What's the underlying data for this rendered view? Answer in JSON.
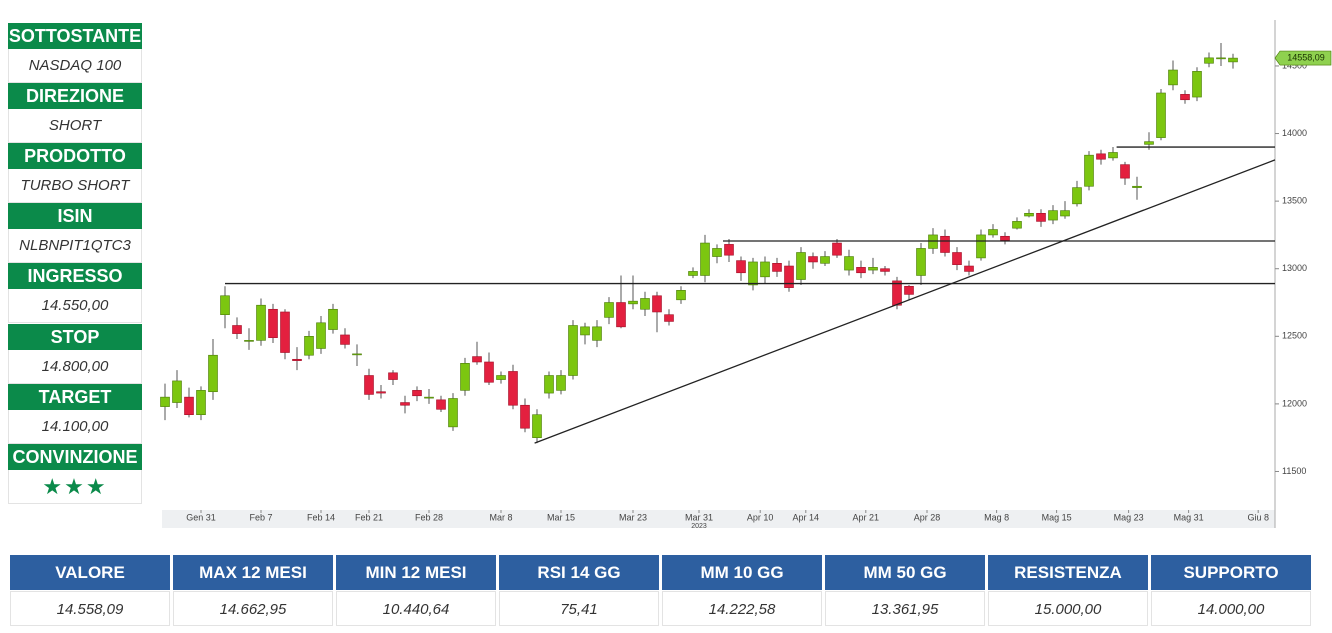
{
  "sidebar": [
    {
      "label": "SOTTOSTANTE",
      "value": "NASDAQ 100"
    },
    {
      "label": "DIREZIONE",
      "value": "SHORT"
    },
    {
      "label": "PRODOTTO",
      "value": "TURBO SHORT"
    },
    {
      "label": "ISIN",
      "value": "NLBNPIT1QTC3"
    },
    {
      "label": "INGRESSO",
      "value": "14.550,00"
    },
    {
      "label": "STOP",
      "value": "14.800,00"
    },
    {
      "label": "TARGET",
      "value": "14.100,00"
    },
    {
      "label": "CONVINZIONE",
      "value": "★★★"
    }
  ],
  "table": {
    "headers": [
      "VALORE",
      "MAX 12 MESI",
      "MIN 12 MESI",
      "RSI 14 GG",
      "MM 10 GG",
      "MM 50 GG",
      "RESISTENZA",
      "SUPPORTO"
    ],
    "values": [
      "14.558,09",
      "14.662,95",
      "10.440,64",
      "75,41",
      "14.222,58",
      "13.361,95",
      "15.000,00",
      "14.000,00"
    ]
  },
  "chart_data": {
    "type": "candlestick",
    "up_color": "#7cc610",
    "down_color": "#e3203f",
    "line_color": "#222222",
    "price_tag": "14558,09",
    "x_sublabel": "2023",
    "xlim": [
      -0.25,
      92.5
    ],
    "ylim": [
      11215,
      14840
    ],
    "xticks": [
      {
        "value": 3,
        "label": "Gen 31"
      },
      {
        "value": 8,
        "label": "Feb 7"
      },
      {
        "value": 13,
        "label": "Feb 14"
      },
      {
        "value": 17,
        "label": "Feb 21"
      },
      {
        "value": 22,
        "label": "Feb 28"
      },
      {
        "value": 28,
        "label": "Mar 8"
      },
      {
        "value": 33,
        "label": "Mar 15"
      },
      {
        "value": 39,
        "label": "Mar 23"
      },
      {
        "value": 44.5,
        "label": "Mar 31"
      },
      {
        "value": 49.6,
        "label": "Apr 10"
      },
      {
        "value": 53.4,
        "label": "Apr 14"
      },
      {
        "value": 58.4,
        "label": "Apr 21"
      },
      {
        "value": 63.5,
        "label": "Apr 28"
      },
      {
        "value": 69.3,
        "label": "Mag 8"
      },
      {
        "value": 74.3,
        "label": "Mag 15"
      },
      {
        "value": 80.3,
        "label": "Mag 23"
      },
      {
        "value": 85.3,
        "label": "Mag 31"
      },
      {
        "value": 91.1,
        "label": "Giu 8"
      }
    ],
    "yticks": [
      11500,
      12000,
      12500,
      13000,
      13500,
      14000,
      14500
    ],
    "open": [
      11980,
      12010,
      12050,
      11920,
      12090,
      12660,
      12580,
      12470,
      12470,
      12700,
      12680,
      12330,
      12360,
      12410,
      12550,
      12510,
      12370,
      12210,
      12090,
      12230,
      12010,
      12100,
      12050,
      12030,
      11830,
      12100,
      12350,
      12310,
      12180,
      12240,
      11990,
      11750,
      12080,
      12100,
      12210,
      12510,
      12470,
      12640,
      12750,
      12740,
      12700,
      12800,
      12660,
      12770,
      12950,
      12950,
      13090,
      13180,
      13060,
      12880,
      12940,
      13040,
      13020,
      12920,
      13090,
      13040,
      13190,
      12990,
      13010,
      12990,
      13000,
      12910,
      12870,
      12950,
      13150,
      13240,
      13120,
      13020,
      13080,
      13250,
      13240,
      13300,
      13390,
      13410,
      13360,
      13390,
      13480,
      13610,
      13850,
      13820,
      13770,
      13600,
      13920,
      13970,
      14360,
      14290,
      14270,
      14520,
      14560,
      14530
    ],
    "close": [
      12050,
      12170,
      11920,
      12100,
      12360,
      12800,
      12520,
      12470,
      12730,
      12490,
      12380,
      12320,
      12500,
      12600,
      12700,
      12440,
      12370,
      12070,
      12080,
      12180,
      11990,
      12060,
      12050,
      11960,
      12040,
      12300,
      12310,
      12160,
      12210,
      11990,
      11820,
      11920,
      12210,
      12210,
      12580,
      12570,
      12570,
      12750,
      12570,
      12760,
      12780,
      12680,
      12610,
      12840,
      12980,
      13190,
      13150,
      13100,
      12970,
      13050,
      13050,
      12980,
      12860,
      13120,
      13050,
      13090,
      13100,
      13090,
      12970,
      13010,
      12980,
      12730,
      12810,
      13150,
      13250,
      13120,
      13030,
      12980,
      13250,
      13290,
      13210,
      13350,
      13410,
      13350,
      13430,
      13430,
      13600,
      13840,
      13810,
      13860,
      13670,
      13610,
      13940,
      14300,
      14470,
      14250,
      14460,
      14560,
      14560,
      14558.09
    ],
    "high": [
      12150,
      12250,
      12120,
      12130,
      12480,
      12870,
      12640,
      12560,
      12780,
      12740,
      12700,
      12420,
      12540,
      12650,
      12740,
      12560,
      12440,
      12260,
      12140,
      12250,
      12060,
      12130,
      12110,
      12060,
      12080,
      12340,
      12460,
      12380,
      12240,
      12290,
      12040,
      11960,
      12240,
      12250,
      12620,
      12600,
      12620,
      12790,
      12950,
      12950,
      12830,
      12830,
      12700,
      12870,
      13010,
      13250,
      13180,
      13220,
      13090,
      13080,
      13090,
      13080,
      13060,
      13160,
      13120,
      13130,
      13220,
      13140,
      13060,
      13080,
      13020,
      12940,
      12880,
      13190,
      13300,
      13290,
      13160,
      13060,
      13290,
      13330,
      13270,
      13380,
      13440,
      13440,
      13470,
      13500,
      13650,
      13870,
      13880,
      13900,
      13790,
      13680,
      14010,
      14330,
      14540,
      14320,
      14490,
      14600,
      14670,
      14590
    ],
    "low": [
      11880,
      11970,
      11900,
      11880,
      12030,
      12560,
      12480,
      12400,
      12430,
      12450,
      12330,
      12250,
      12330,
      12370,
      12520,
      12410,
      12280,
      12030,
      12040,
      12140,
      11930,
      12020,
      12000,
      11940,
      11800,
      12060,
      12290,
      12140,
      12150,
      11960,
      11790,
      11710,
      12040,
      12070,
      12180,
      12440,
      12420,
      12590,
      12560,
      12700,
      12650,
      12530,
      12580,
      12740,
      12930,
      12900,
      13040,
      13050,
      12910,
      12840,
      12890,
      12940,
      12830,
      12880,
      13000,
      13020,
      13080,
      12950,
      12930,
      12960,
      12950,
      12700,
      12770,
      12880,
      13110,
      13090,
      12990,
      12950,
      13060,
      13230,
      13180,
      13290,
      13380,
      13310,
      13330,
      13370,
      13460,
      13580,
      13770,
      13800,
      13620,
      13510,
      13880,
      13950,
      14320,
      14220,
      14240,
      14490,
      14500,
      14480
    ],
    "lines": [
      {
        "x": [
          5,
          92.5
        ],
        "y": [
          12890,
          12890
        ]
      },
      {
        "x": [
          46.5,
          92.5
        ],
        "y": [
          13205,
          13205
        ]
      },
      {
        "x": [
          79.3,
          92.5
        ],
        "y": [
          13900,
          13900
        ]
      },
      {
        "x": [
          30.8,
          92.5
        ],
        "y": [
          11710,
          13805
        ]
      }
    ]
  }
}
